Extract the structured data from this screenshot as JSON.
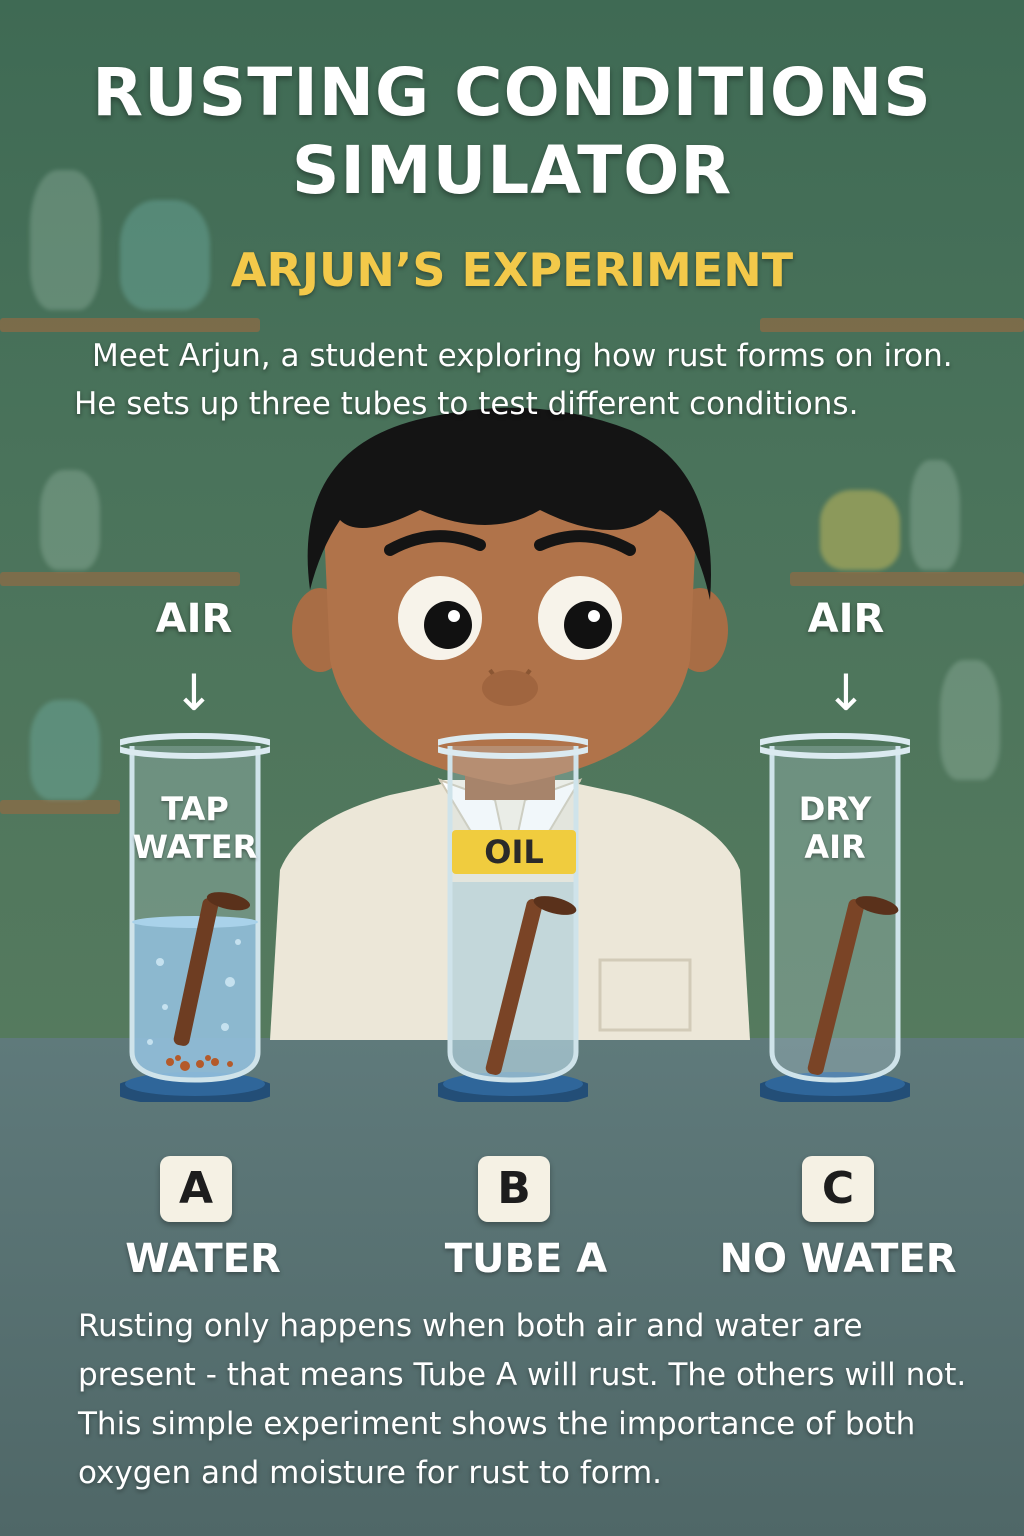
{
  "title": {
    "line1": "RUSTING CONDITIONS",
    "line2": "SIMULATOR"
  },
  "subtitle": "ARJUN’S EXPERIMENT",
  "intro": "Meet Arjun, a student exploring how rust forms on iron. He sets up three tubes to test different conditions.",
  "tubes": [
    {
      "air_label": "AIR",
      "arrow": "↓",
      "label_line1": "TAP",
      "label_line2": "WATER",
      "letter": "A",
      "caption": "WATER"
    },
    {
      "label": "OIL",
      "letter": "B",
      "caption": "TUBE A"
    },
    {
      "air_label": "AIR",
      "arrow": "↓",
      "label_line1": "DRY",
      "label_line2": "AIR",
      "letter": "C",
      "caption": "NO WATER"
    }
  ],
  "conclusion": "Rusting only happens when both air and water are present - that means Tube A will rust. The others will not. This simple experiment shows the importance of both oxygen and moisture for rust to form.",
  "colors": {
    "title": "#ffffff",
    "subtitle": "#f3c94a",
    "oil_band": "#f0cc3e",
    "wall": "#4a735b",
    "table": "#5a7475"
  },
  "icons": [
    "student-illustration",
    "test-tube-icon",
    "iron-nail-icon",
    "down-arrow-icon"
  ]
}
